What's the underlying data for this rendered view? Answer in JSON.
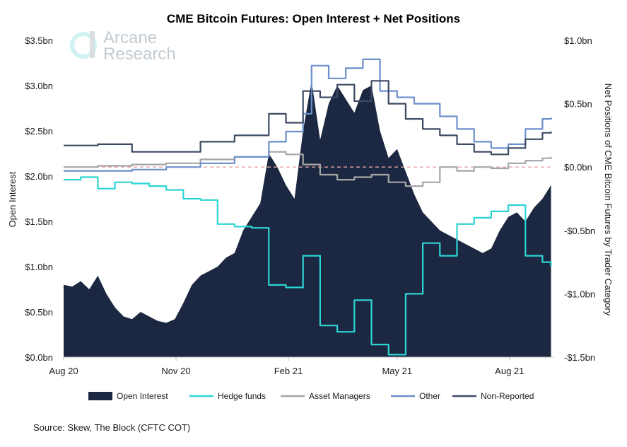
{
  "chart_data": {
    "type": "area",
    "title": "CME Bitcoin Futures: Open Interest + Net Positions",
    "ylabel_left": "Open Interest",
    "ylabel_right": "Net Positions of CME Bitcoin Futures by Trader Category",
    "x_ticks": [
      "Aug 20",
      "Nov 20",
      "Feb 21",
      "May 21",
      "Aug 21"
    ],
    "left_axis": {
      "min": 0,
      "max": 3.5,
      "ticks": [
        0,
        0.5,
        1.0,
        1.5,
        2.0,
        2.5,
        3.0,
        3.5
      ],
      "tick_labels": [
        "$0.0bn",
        "$0.5bn",
        "$1.0bn",
        "$1.5bn",
        "$2.0bn",
        "$2.5bn",
        "$3.0bn",
        "$3.5bn"
      ]
    },
    "right_axis": {
      "min": -1.5,
      "max": 1.0,
      "ticks": [
        -1.5,
        -1.0,
        -0.5,
        0,
        0.5,
        1.0
      ],
      "tick_labels": [
        "-$1.5bn",
        "-$1.0bn",
        "-$0.5bn",
        "$0.0bn",
        "$0.5bn",
        "$1.0bn"
      ]
    },
    "zero_reference_line": true,
    "series": [
      {
        "name": "Open Interest",
        "axis": "left",
        "style": "area",
        "color": "#1c2841",
        "points": [
          [
            "2020-08-01",
            0.8
          ],
          [
            "2020-08-08",
            0.78
          ],
          [
            "2020-08-15",
            0.84
          ],
          [
            "2020-08-22",
            0.75
          ],
          [
            "2020-08-29",
            0.9
          ],
          [
            "2020-09-05",
            0.7
          ],
          [
            "2020-09-12",
            0.55
          ],
          [
            "2020-09-19",
            0.45
          ],
          [
            "2020-09-26",
            0.42
          ],
          [
            "2020-10-03",
            0.5
          ],
          [
            "2020-10-10",
            0.45
          ],
          [
            "2020-10-17",
            0.4
          ],
          [
            "2020-10-24",
            0.38
          ],
          [
            "2020-10-31",
            0.42
          ],
          [
            "2020-11-07",
            0.6
          ],
          [
            "2020-11-14",
            0.8
          ],
          [
            "2020-11-21",
            0.9
          ],
          [
            "2020-11-28",
            0.95
          ],
          [
            "2020-12-05",
            1.0
          ],
          [
            "2020-12-12",
            1.1
          ],
          [
            "2020-12-19",
            1.15
          ],
          [
            "2020-12-26",
            1.4
          ],
          [
            "2021-01-02",
            1.55
          ],
          [
            "2021-01-09",
            1.7
          ],
          [
            "2021-01-16",
            2.25
          ],
          [
            "2021-01-23",
            2.1
          ],
          [
            "2021-01-30",
            1.9
          ],
          [
            "2021-02-06",
            1.75
          ],
          [
            "2021-02-13",
            2.5
          ],
          [
            "2021-02-20",
            3.05
          ],
          [
            "2021-02-27",
            2.4
          ],
          [
            "2021-03-06",
            2.8
          ],
          [
            "2021-03-13",
            3.0
          ],
          [
            "2021-03-20",
            2.85
          ],
          [
            "2021-03-27",
            2.7
          ],
          [
            "2021-04-03",
            2.95
          ],
          [
            "2021-04-10",
            3.0
          ],
          [
            "2021-04-17",
            2.5
          ],
          [
            "2021-04-24",
            2.2
          ],
          [
            "2021-05-01",
            2.3
          ],
          [
            "2021-05-08",
            2.05
          ],
          [
            "2021-05-15",
            1.8
          ],
          [
            "2021-05-22",
            1.6
          ],
          [
            "2021-05-29",
            1.5
          ],
          [
            "2021-06-05",
            1.4
          ],
          [
            "2021-06-12",
            1.35
          ],
          [
            "2021-06-19",
            1.3
          ],
          [
            "2021-06-26",
            1.25
          ],
          [
            "2021-07-03",
            1.2
          ],
          [
            "2021-07-10",
            1.15
          ],
          [
            "2021-07-17",
            1.2
          ],
          [
            "2021-07-24",
            1.4
          ],
          [
            "2021-07-31",
            1.55
          ],
          [
            "2021-08-07",
            1.6
          ],
          [
            "2021-08-14",
            1.5
          ],
          [
            "2021-08-21",
            1.65
          ],
          [
            "2021-08-28",
            1.75
          ],
          [
            "2021-09-04",
            1.9
          ]
        ]
      },
      {
        "name": "Hedge funds",
        "axis": "right",
        "style": "line",
        "color": "#2dd4d4",
        "points": [
          [
            "2020-08-01",
            -0.1
          ],
          [
            "2020-08-15",
            -0.08
          ],
          [
            "2020-08-29",
            -0.17
          ],
          [
            "2020-09-12",
            -0.12
          ],
          [
            "2020-09-26",
            -0.13
          ],
          [
            "2020-10-10",
            -0.15
          ],
          [
            "2020-10-24",
            -0.18
          ],
          [
            "2020-11-07",
            -0.25
          ],
          [
            "2020-11-21",
            -0.26
          ],
          [
            "2020-12-05",
            -0.45
          ],
          [
            "2020-12-19",
            -0.47
          ],
          [
            "2021-01-02",
            -0.48
          ],
          [
            "2021-01-16",
            -0.93
          ],
          [
            "2021-01-30",
            -0.95
          ],
          [
            "2021-02-13",
            -0.7
          ],
          [
            "2021-02-27",
            -1.25
          ],
          [
            "2021-03-13",
            -1.3
          ],
          [
            "2021-03-27",
            -1.05
          ],
          [
            "2021-04-10",
            -1.4
          ],
          [
            "2021-04-24",
            -1.48
          ],
          [
            "2021-05-08",
            -1.0
          ],
          [
            "2021-05-22",
            -0.6
          ],
          [
            "2021-06-05",
            -0.7
          ],
          [
            "2021-06-19",
            -0.45
          ],
          [
            "2021-07-03",
            -0.4
          ],
          [
            "2021-07-17",
            -0.35
          ],
          [
            "2021-07-31",
            -0.3
          ],
          [
            "2021-08-14",
            -0.7
          ],
          [
            "2021-08-28",
            -0.75
          ],
          [
            "2021-09-04",
            -0.78
          ]
        ]
      },
      {
        "name": "Asset Managers",
        "axis": "right",
        "style": "line",
        "color": "#a6a6a6",
        "points": [
          [
            "2020-08-01",
            0.0
          ],
          [
            "2020-08-29",
            0.01
          ],
          [
            "2020-09-26",
            0.02
          ],
          [
            "2020-10-24",
            0.03
          ],
          [
            "2020-11-21",
            0.06
          ],
          [
            "2020-12-19",
            0.08
          ],
          [
            "2021-01-16",
            0.12
          ],
          [
            "2021-01-30",
            0.1
          ],
          [
            "2021-02-13",
            0.02
          ],
          [
            "2021-02-27",
            -0.06
          ],
          [
            "2021-03-13",
            -0.1
          ],
          [
            "2021-03-27",
            -0.08
          ],
          [
            "2021-04-10",
            -0.06
          ],
          [
            "2021-04-24",
            -0.12
          ],
          [
            "2021-05-08",
            -0.15
          ],
          [
            "2021-05-22",
            -0.12
          ],
          [
            "2021-06-05",
            0.0
          ],
          [
            "2021-06-19",
            -0.03
          ],
          [
            "2021-07-03",
            0.0
          ],
          [
            "2021-07-17",
            -0.01
          ],
          [
            "2021-07-31",
            0.03
          ],
          [
            "2021-08-14",
            0.05
          ],
          [
            "2021-08-28",
            0.07
          ],
          [
            "2021-09-04",
            0.08
          ]
        ]
      },
      {
        "name": "Other",
        "axis": "right",
        "style": "line",
        "color": "#6a8fcb",
        "points": [
          [
            "2020-08-01",
            -0.03
          ],
          [
            "2020-08-29",
            -0.03
          ],
          [
            "2020-09-26",
            -0.02
          ],
          [
            "2020-10-24",
            0.0
          ],
          [
            "2020-11-21",
            0.03
          ],
          [
            "2020-12-19",
            0.08
          ],
          [
            "2021-01-16",
            0.2
          ],
          [
            "2021-01-30",
            0.28
          ],
          [
            "2021-02-13",
            0.42
          ],
          [
            "2021-02-20",
            0.8
          ],
          [
            "2021-03-06",
            0.7
          ],
          [
            "2021-03-20",
            0.78
          ],
          [
            "2021-04-03",
            0.85
          ],
          [
            "2021-04-17",
            0.6
          ],
          [
            "2021-05-01",
            0.55
          ],
          [
            "2021-05-15",
            0.5
          ],
          [
            "2021-06-05",
            0.4
          ],
          [
            "2021-06-19",
            0.3
          ],
          [
            "2021-07-03",
            0.2
          ],
          [
            "2021-07-17",
            0.15
          ],
          [
            "2021-07-31",
            0.18
          ],
          [
            "2021-08-14",
            0.3
          ],
          [
            "2021-08-28",
            0.38
          ],
          [
            "2021-09-04",
            0.39
          ]
        ]
      },
      {
        "name": "Non-Reported",
        "axis": "right",
        "style": "line",
        "color": "#3d4a63",
        "points": [
          [
            "2020-08-01",
            0.17
          ],
          [
            "2020-08-29",
            0.18
          ],
          [
            "2020-09-26",
            0.12
          ],
          [
            "2020-10-24",
            0.12
          ],
          [
            "2020-11-21",
            0.2
          ],
          [
            "2020-12-19",
            0.25
          ],
          [
            "2021-01-16",
            0.42
          ],
          [
            "2021-01-30",
            0.35
          ],
          [
            "2021-02-13",
            0.6
          ],
          [
            "2021-02-27",
            0.55
          ],
          [
            "2021-03-13",
            0.65
          ],
          [
            "2021-03-27",
            0.52
          ],
          [
            "2021-04-10",
            0.68
          ],
          [
            "2021-04-24",
            0.5
          ],
          [
            "2021-05-08",
            0.38
          ],
          [
            "2021-05-22",
            0.3
          ],
          [
            "2021-06-05",
            0.25
          ],
          [
            "2021-06-19",
            0.18
          ],
          [
            "2021-07-03",
            0.12
          ],
          [
            "2021-07-17",
            0.1
          ],
          [
            "2021-07-31",
            0.15
          ],
          [
            "2021-08-14",
            0.22
          ],
          [
            "2021-08-28",
            0.27
          ],
          [
            "2021-09-04",
            0.28
          ]
        ]
      }
    ],
    "legend": {
      "placement": "bottom",
      "items": [
        {
          "label": "Open Interest",
          "kind": "area",
          "color": "#1c2841"
        },
        {
          "label": "Hedge funds",
          "kind": "line",
          "color": "#2dd4d4"
        },
        {
          "label": "Asset Managers",
          "kind": "line",
          "color": "#a6a6a6"
        },
        {
          "label": "Other",
          "kind": "line",
          "color": "#6a8fcb"
        },
        {
          "label": "Non-Reported",
          "kind": "line",
          "color": "#3d4a63"
        }
      ]
    }
  },
  "logo": {
    "line1": "Arcane",
    "line2": "Research"
  },
  "source": "Source: Skew, The Block (CFTC COT)"
}
